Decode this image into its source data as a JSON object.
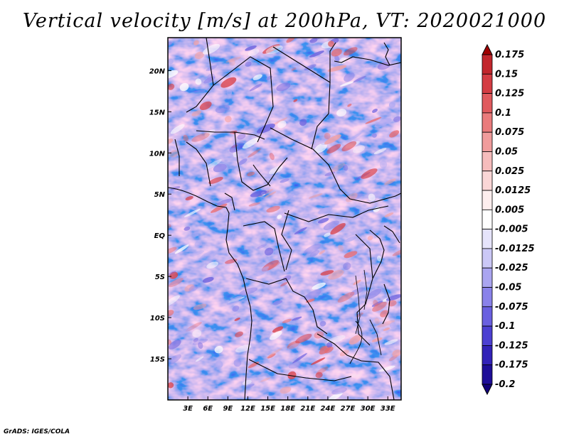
{
  "title": "Vertical velocity [m/s] at 200hPa, VT: 2020021000",
  "footer": "GrADS: IGES/COLA",
  "map": {
    "lon_range": [
      0,
      35
    ],
    "lat_range": [
      -20,
      24
    ],
    "lon_ticks": [
      {
        "value": 3,
        "label": "3E"
      },
      {
        "value": 6,
        "label": "6E"
      },
      {
        "value": 9,
        "label": "9E"
      },
      {
        "value": 12,
        "label": "12E"
      },
      {
        "value": 15,
        "label": "15E"
      },
      {
        "value": 18,
        "label": "18E"
      },
      {
        "value": 21,
        "label": "21E"
      },
      {
        "value": 24,
        "label": "24E"
      },
      {
        "value": 27,
        "label": "27E"
      },
      {
        "value": 30,
        "label": "30E"
      },
      {
        "value": 33,
        "label": "33E"
      }
    ],
    "lat_ticks": [
      {
        "value": 20,
        "label": "20N"
      },
      {
        "value": 15,
        "label": "15N"
      },
      {
        "value": 10,
        "label": "10N"
      },
      {
        "value": 5,
        "label": "5N"
      },
      {
        "value": 0,
        "label": "EQ"
      },
      {
        "value": -5,
        "label": "5S"
      },
      {
        "value": -10,
        "label": "10S"
      },
      {
        "value": -15,
        "label": "15S"
      }
    ]
  },
  "colorbar": {
    "labels": [
      "0.175",
      "0.15",
      "0.125",
      "0.1",
      "0.075",
      "0.05",
      "0.025",
      "0.0125",
      "0.005",
      "-0.005",
      "-0.0125",
      "-0.025",
      "-0.05",
      "-0.075",
      "-0.1",
      "-0.125",
      "-0.175",
      "-0.2"
    ],
    "colors": [
      "#a00000",
      "#c2262c",
      "#d43c43",
      "#e05a5e",
      "#ea7b7c",
      "#f09c9c",
      "#f6bcbc",
      "#fad6d6",
      "#fdeeee",
      "#ffffff",
      "#e6e4fb",
      "#cbc8f6",
      "#aaa5f0",
      "#8a82ea",
      "#6a60e0",
      "#4c40d2",
      "#3222b8",
      "#1e0e98",
      "#12007a"
    ]
  }
}
